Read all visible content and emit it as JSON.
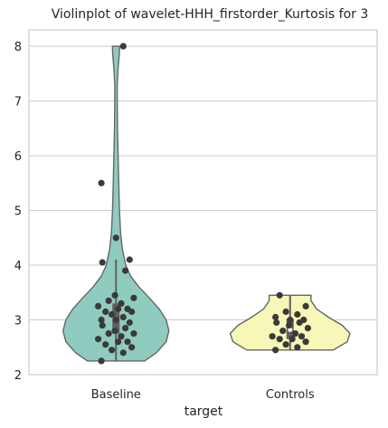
{
  "chart_data": {
    "type": "violin",
    "title": "Violinplot of wavelet-HHH_firstorder_Kurtosis for 3",
    "xlabel": "target",
    "ylabel": "",
    "categories": [
      "Baseline",
      "Controls"
    ],
    "ylim": [
      2.0,
      8.3
    ],
    "yticks": [
      2,
      3,
      4,
      5,
      6,
      7,
      8
    ],
    "grid": true,
    "colors": {
      "Baseline": "#8fcbbf",
      "Controls": "#f7f7b8",
      "points": "#3a3a3a",
      "outline": "#666666"
    },
    "series": [
      {
        "category": "Baseline",
        "range": [
          2.25,
          8.0
        ],
        "quartiles": [
          2.75,
          3.02,
          3.3
        ],
        "whisker": [
          2.25,
          4.1
        ],
        "density": [
          [
            2.25,
            0.41
          ],
          [
            2.4,
            0.58
          ],
          [
            2.6,
            0.72
          ],
          [
            2.8,
            0.76
          ],
          [
            3.0,
            0.72
          ],
          [
            3.2,
            0.62
          ],
          [
            3.4,
            0.48
          ],
          [
            3.6,
            0.33
          ],
          [
            3.8,
            0.21
          ],
          [
            4.0,
            0.14
          ],
          [
            4.3,
            0.09
          ],
          [
            4.6,
            0.065
          ],
          [
            5.0,
            0.05
          ],
          [
            5.5,
            0.04
          ],
          [
            6.0,
            0.03
          ],
          [
            6.5,
            0.022
          ],
          [
            7.0,
            0.018
          ],
          [
            7.3,
            0.018
          ],
          [
            7.6,
            0.03
          ],
          [
            7.9,
            0.05
          ],
          [
            8.0,
            0.05
          ]
        ],
        "points": [
          2.25,
          2.4,
          2.45,
          2.5,
          2.55,
          2.6,
          2.6,
          2.65,
          2.7,
          2.75,
          2.75,
          2.8,
          2.85,
          2.9,
          2.95,
          3.0,
          3.0,
          3.05,
          3.1,
          3.15,
          3.15,
          3.2,
          3.2,
          3.25,
          3.3,
          3.35,
          3.4,
          3.45,
          3.9,
          4.05,
          4.1,
          4.5,
          5.5,
          8.0
        ]
      },
      {
        "category": "Controls",
        "range": [
          2.45,
          3.45
        ],
        "quartiles": [
          2.65,
          2.82,
          3.02
        ],
        "whisker": [
          2.45,
          3.45
        ],
        "density": [
          [
            2.45,
            0.62
          ],
          [
            2.6,
            0.82
          ],
          [
            2.75,
            0.86
          ],
          [
            2.9,
            0.75
          ],
          [
            3.05,
            0.55
          ],
          [
            3.2,
            0.38
          ],
          [
            3.35,
            0.3
          ],
          [
            3.45,
            0.3
          ]
        ],
        "points": [
          2.45,
          2.5,
          2.55,
          2.6,
          2.65,
          2.65,
          2.7,
          2.7,
          2.75,
          2.8,
          2.85,
          2.9,
          2.95,
          2.95,
          3.0,
          3.0,
          3.05,
          3.1,
          3.15,
          3.25,
          3.45
        ]
      }
    ]
  }
}
